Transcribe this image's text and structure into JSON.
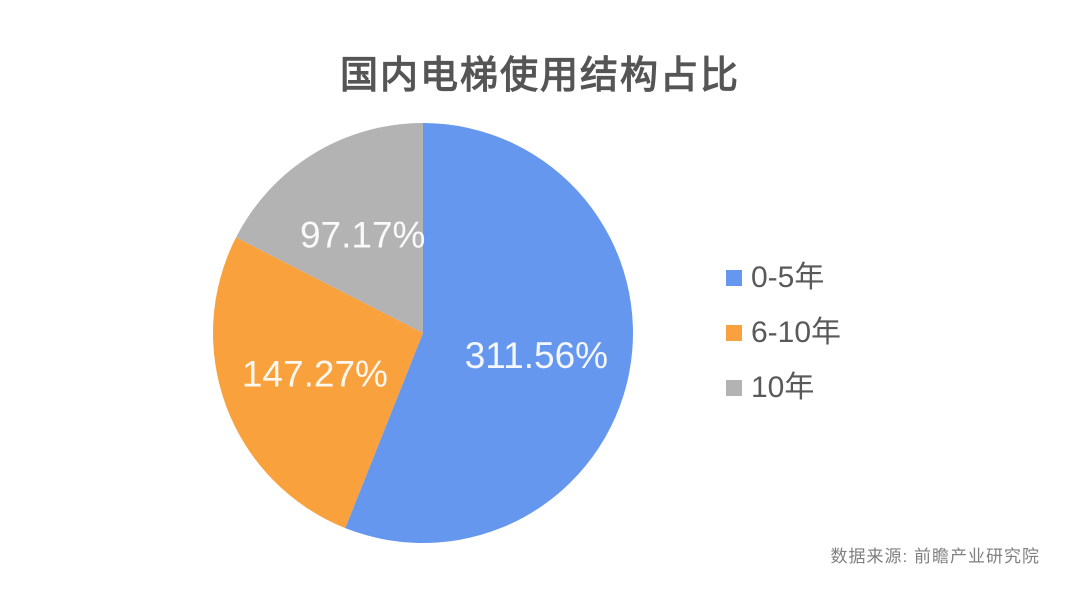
{
  "chart_data": {
    "type": "pie",
    "title": "国内电梯使用结构占比",
    "categories": [
      "0-5年",
      "6-10年",
      "10年"
    ],
    "values": [
      311.56,
      147.27,
      97.17
    ],
    "value_labels": [
      "311.56%",
      "147.27%",
      "97.17%"
    ],
    "colors": [
      "#6697ee",
      "#f9a13c",
      "#b3b3b3"
    ],
    "label_text_color": "rgba(255,255,255,0.93)",
    "title_color": "#555555",
    "legend_text_color": "#595959",
    "start_angle": 0,
    "direction": "clockwise",
    "legend_position": "right",
    "grid": false,
    "source": "数据来源: 前瞻产业研究院"
  }
}
